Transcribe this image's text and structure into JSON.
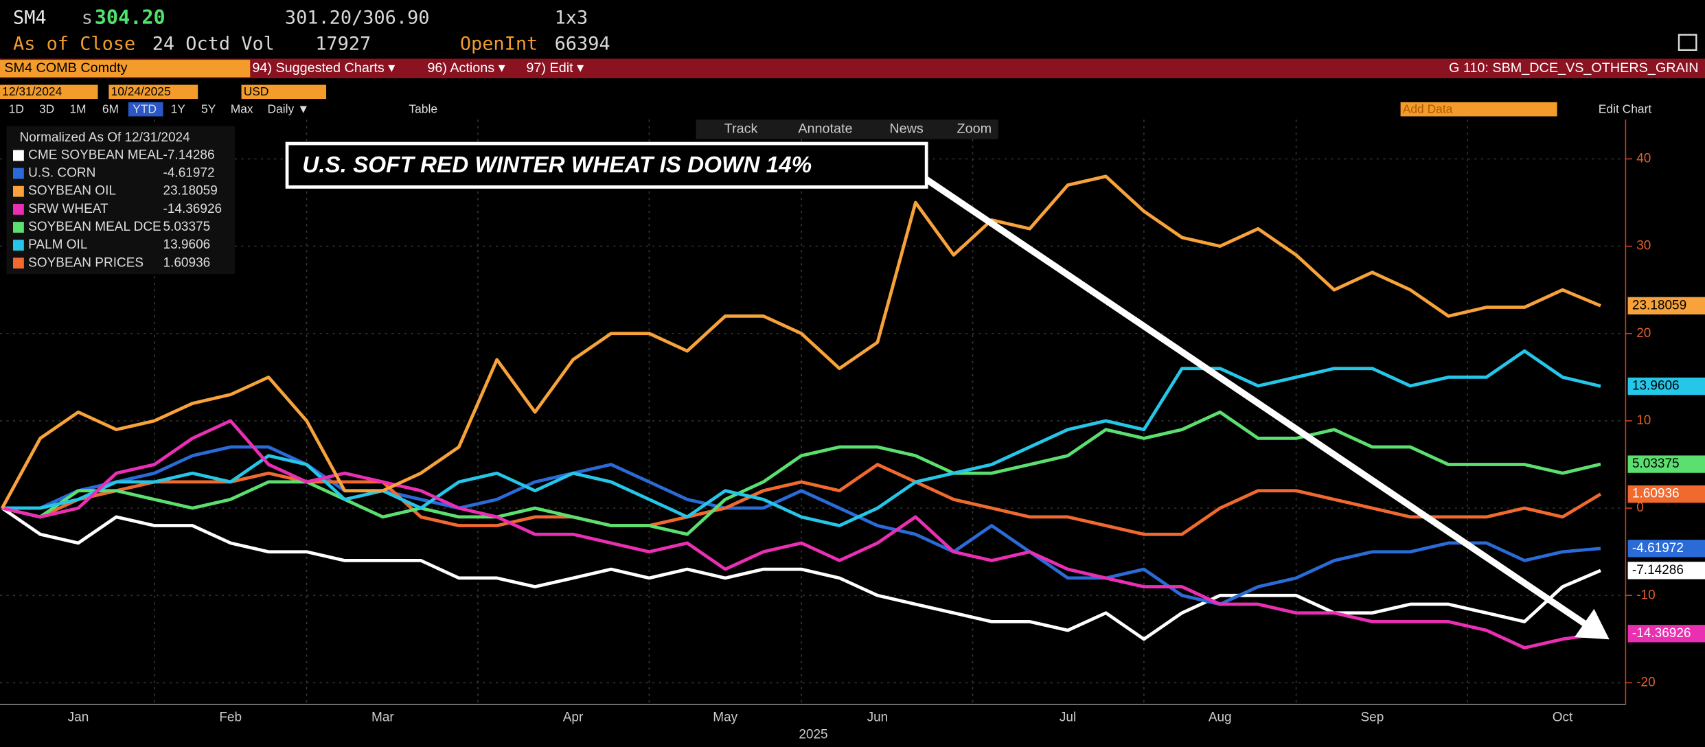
{
  "ui": {
    "ticker": "SM4",
    "price_prefix": "s",
    "price": "304.20",
    "range": "301.20/306.90",
    "ratio": "1x3",
    "as_of": "As of Close",
    "date_vol": "24 Octd Vol",
    "volume": "17927",
    "openint_label": "OpenInt",
    "openint": "66394",
    "security": "SM4 COMB Comdty",
    "menu": [
      "94) Suggested Charts ▾",
      "96) Actions ▾",
      "97) Edit ▾"
    ],
    "chart_id": "G 110: SBM_DCE_VS_OTHERS_GRAIN",
    "start_date": "12/31/2024",
    "end_date": "10/24/2025",
    "currency": "USD",
    "periods": [
      "1D",
      "3D",
      "1M",
      "6M",
      "YTD",
      "1Y",
      "5Y",
      "Max",
      "Daily ▼"
    ],
    "table_button": "Table",
    "add_data": "Add Data",
    "edit_chart": "Edit Chart",
    "tools": [
      "Track",
      "Annotate",
      "News",
      "Zoom"
    ]
  },
  "chart_data": {
    "type": "line",
    "legend_title": "Normalized As Of 12/31/2024",
    "annotation": "U.S. SOFT RED WINTER WHEAT IS DOWN 14%",
    "x_label": "2025",
    "categories": [
      null,
      null,
      "Jan",
      null,
      null,
      null,
      "Feb",
      null,
      null,
      null,
      "Mar",
      null,
      null,
      null,
      null,
      "Apr",
      null,
      null,
      null,
      "May",
      null,
      null,
      null,
      "Jun",
      null,
      null,
      null,
      null,
      "Jul",
      null,
      null,
      null,
      "Aug",
      null,
      null,
      null,
      "Sep",
      null,
      null,
      null,
      null,
      "Oct",
      null
    ],
    "ylim": [
      -22.5,
      44.5
    ],
    "yticks": [
      40,
      30,
      20,
      10,
      0,
      -10,
      -20
    ],
    "grid": true,
    "series": [
      {
        "name": "CME SOYBEAN MEAL",
        "color": "#ffffff",
        "values": [
          0,
          -3,
          -4,
          -1,
          -2,
          -2,
          -4,
          -5,
          -5,
          -6,
          -6,
          -6,
          -8,
          -8,
          -9,
          -8,
          -7,
          -8,
          -7,
          -8,
          -7,
          -7,
          -8,
          -10,
          -11,
          -12,
          -13,
          -13,
          -14,
          -12,
          -15,
          -12,
          -10,
          -10,
          -10,
          -12,
          -12,
          -11,
          -11,
          -12,
          -13,
          -9,
          -7.14286
        ]
      },
      {
        "name": "U.S. CORN",
        "color": "#2b6bd8",
        "values": [
          0,
          0,
          2,
          3,
          4,
          6,
          7,
          7,
          5,
          2,
          2,
          1,
          0,
          1,
          3,
          4,
          5,
          3,
          1,
          0,
          0,
          2,
          0,
          -2,
          -3,
          -5,
          -2,
          -5,
          -8,
          -8,
          -7,
          -10,
          -11,
          -9,
          -8,
          -6,
          -5,
          -5,
          -4,
          -4,
          -6,
          -5,
          -4.61972
        ]
      },
      {
        "name": "SOYBEAN OIL",
        "color": "#f7a23a",
        "values": [
          0,
          8,
          11,
          9,
          10,
          12,
          13,
          15,
          10,
          2,
          2,
          4,
          7,
          17,
          11,
          17,
          20,
          20,
          18,
          22,
          22,
          20,
          16,
          19,
          35,
          29,
          33,
          32,
          37,
          38,
          34,
          31,
          30,
          32,
          29,
          25,
          27,
          25,
          22,
          23,
          23,
          25,
          23.18059
        ]
      },
      {
        "name": "SRW WHEAT",
        "color": "#ea2fb3",
        "values": [
          0,
          -1,
          0,
          4,
          5,
          8,
          10,
          5,
          3,
          4,
          3,
          2,
          0,
          -1,
          -3,
          -3,
          -4,
          -5,
          -4,
          -7,
          -5,
          -4,
          -6,
          -4,
          -1,
          -5,
          -6,
          -5,
          -7,
          -8,
          -9,
          -9,
          -11,
          -11,
          -12,
          -12,
          -13,
          -13,
          -13,
          -14,
          -16,
          -15,
          -14.36926
        ]
      },
      {
        "name": "SOYBEAN MEAL DCE",
        "color": "#5be070",
        "values": [
          0,
          -1,
          2,
          2,
          1,
          0,
          1,
          3,
          3,
          1,
          -1,
          0,
          -1,
          -1,
          0,
          -1,
          -2,
          -2,
          -3,
          1,
          3,
          6,
          7,
          7,
          6,
          4,
          4,
          5,
          6,
          9,
          8,
          9,
          11,
          8,
          8,
          9,
          7,
          7,
          5,
          5,
          5,
          4,
          5.03375
        ]
      },
      {
        "name": "PALM OIL",
        "color": "#26c6e8",
        "values": [
          0,
          0,
          1,
          3,
          3,
          4,
          3,
          6,
          5,
          1,
          2,
          0,
          3,
          4,
          2,
          4,
          3,
          1,
          -1,
          2,
          1,
          -1,
          -2,
          0,
          3,
          4,
          5,
          7,
          9,
          10,
          9,
          16,
          16,
          14,
          15,
          16,
          16,
          14,
          15,
          15,
          18,
          15,
          13.9606
        ]
      },
      {
        "name": "SOYBEAN PRICES",
        "color": "#f06a2f",
        "values": [
          0,
          -1,
          1,
          2,
          3,
          3,
          3,
          4,
          3,
          3,
          3,
          -1,
          -2,
          -2,
          -1,
          -1,
          -2,
          -2,
          -1,
          0,
          2,
          3,
          2,
          5,
          3,
          1,
          0,
          -1,
          -1,
          -2,
          -3,
          -3,
          0,
          2,
          2,
          1,
          0,
          -1,
          -1,
          -1,
          0,
          -1,
          1.60936
        ]
      }
    ]
  }
}
